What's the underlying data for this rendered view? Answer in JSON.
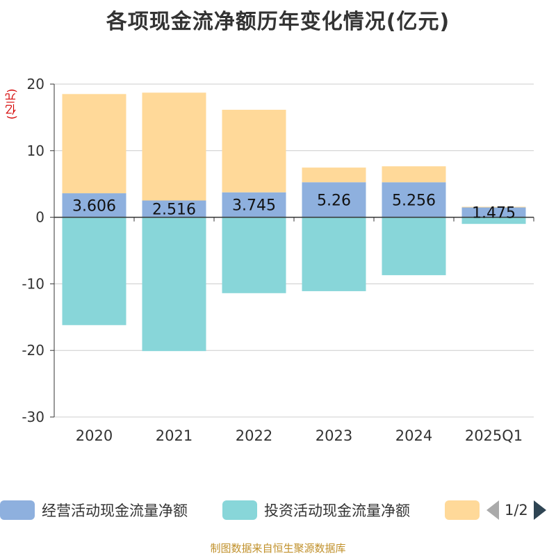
{
  "title": "各项现金流净额历年变化情况(亿元)",
  "unit_label": "(亿元)",
  "source": "制图数据来自恒生聚源数据库",
  "pager": {
    "text": "1/2"
  },
  "chart_data": {
    "type": "bar",
    "stacked": true,
    "categories": [
      "2020",
      "2021",
      "2022",
      "2023",
      "2024",
      "2025Q1"
    ],
    "ylim": [
      -30,
      20
    ],
    "yticks": [
      20,
      10,
      0,
      -10,
      -20,
      -30
    ],
    "grid": true,
    "legend_position": "bottom",
    "series": [
      {
        "name": "经营活动现金流量净额",
        "color": "#8eb0de",
        "values": [
          3.606,
          2.516,
          3.745,
          5.26,
          5.256,
          1.475
        ],
        "labels": [
          "3.606",
          "2.516",
          "3.745",
          "5.26",
          "5.256",
          "1.475"
        ]
      },
      {
        "name": "投资活动现金流量净额",
        "color": "#88d6d9",
        "values": [
          -16.2,
          -20.1,
          -11.4,
          -11.1,
          -8.7,
          -1.0
        ]
      },
      {
        "name": "",
        "color": "#ffd999",
        "values": [
          14.9,
          16.2,
          12.4,
          2.2,
          2.4,
          0.1
        ]
      }
    ]
  }
}
